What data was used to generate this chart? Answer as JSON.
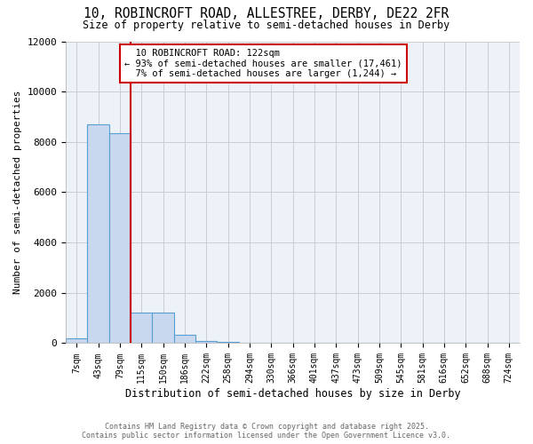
{
  "title_line1": "10, ROBINCROFT ROAD, ALLESTREE, DERBY, DE22 2FR",
  "title_line2": "Size of property relative to semi-detached houses in Derby",
  "xlabel": "Distribution of semi-detached houses by size in Derby",
  "ylabel": "Number of semi-detached properties",
  "bar_labels": [
    "7sqm",
    "43sqm",
    "79sqm",
    "115sqm",
    "150sqm",
    "186sqm",
    "222sqm",
    "258sqm",
    "294sqm",
    "330sqm",
    "366sqm",
    "401sqm",
    "437sqm",
    "473sqm",
    "509sqm",
    "545sqm",
    "581sqm",
    "616sqm",
    "652sqm",
    "688sqm",
    "724sqm"
  ],
  "bar_values": [
    200,
    8700,
    8350,
    1200,
    1200,
    350,
    100,
    50,
    0,
    0,
    0,
    0,
    0,
    0,
    0,
    0,
    0,
    0,
    0,
    0,
    0
  ],
  "bar_color": "#c8d8ee",
  "bar_edge_color": "#5a9fd4",
  "ylim": [
    0,
    12000
  ],
  "yticks": [
    0,
    2000,
    4000,
    6000,
    8000,
    10000,
    12000
  ],
  "property_label": "10 ROBINCROFT ROAD: 122sqm",
  "pct_smaller": 93,
  "count_smaller": "17,461",
  "pct_larger": 7,
  "count_larger": "1,244",
  "redline_bar_index": 3,
  "annotation_box_color": "#cc0000",
  "redline_color": "#cc0000",
  "grid_color": "#c8c8c8",
  "background_color": "#edf2f9",
  "footer_line1": "Contains HM Land Registry data © Crown copyright and database right 2025.",
  "footer_line2": "Contains public sector information licensed under the Open Government Licence v3.0."
}
